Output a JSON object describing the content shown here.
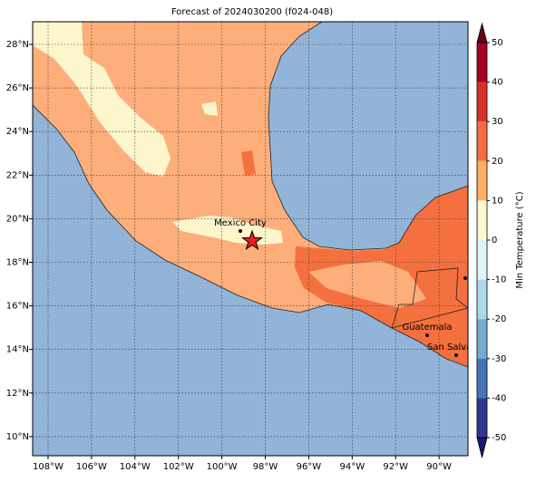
{
  "map": {
    "title": "Forecast of 2024030200 (f024-048)",
    "lon_labels": [
      "108°W",
      "106°W",
      "104°W",
      "102°W",
      "100°W",
      "98°W",
      "96°W",
      "94°W",
      "92°W",
      "90°W"
    ],
    "lat_labels": [
      "28°N",
      "26°N",
      "24°N",
      "22°N",
      "20°N",
      "18°N",
      "16°N",
      "14°N",
      "12°N",
      "10°N"
    ],
    "cities": [
      {
        "label": "Mexico City"
      },
      {
        "label": "Guatemala"
      },
      {
        "label": "San Salvador"
      }
    ],
    "colorbar": {
      "label": "Min Temperature (°C)",
      "ticks": [
        50,
        40,
        30,
        20,
        10,
        0,
        -10,
        -20,
        -30,
        -40,
        -50
      ]
    }
  }
}
